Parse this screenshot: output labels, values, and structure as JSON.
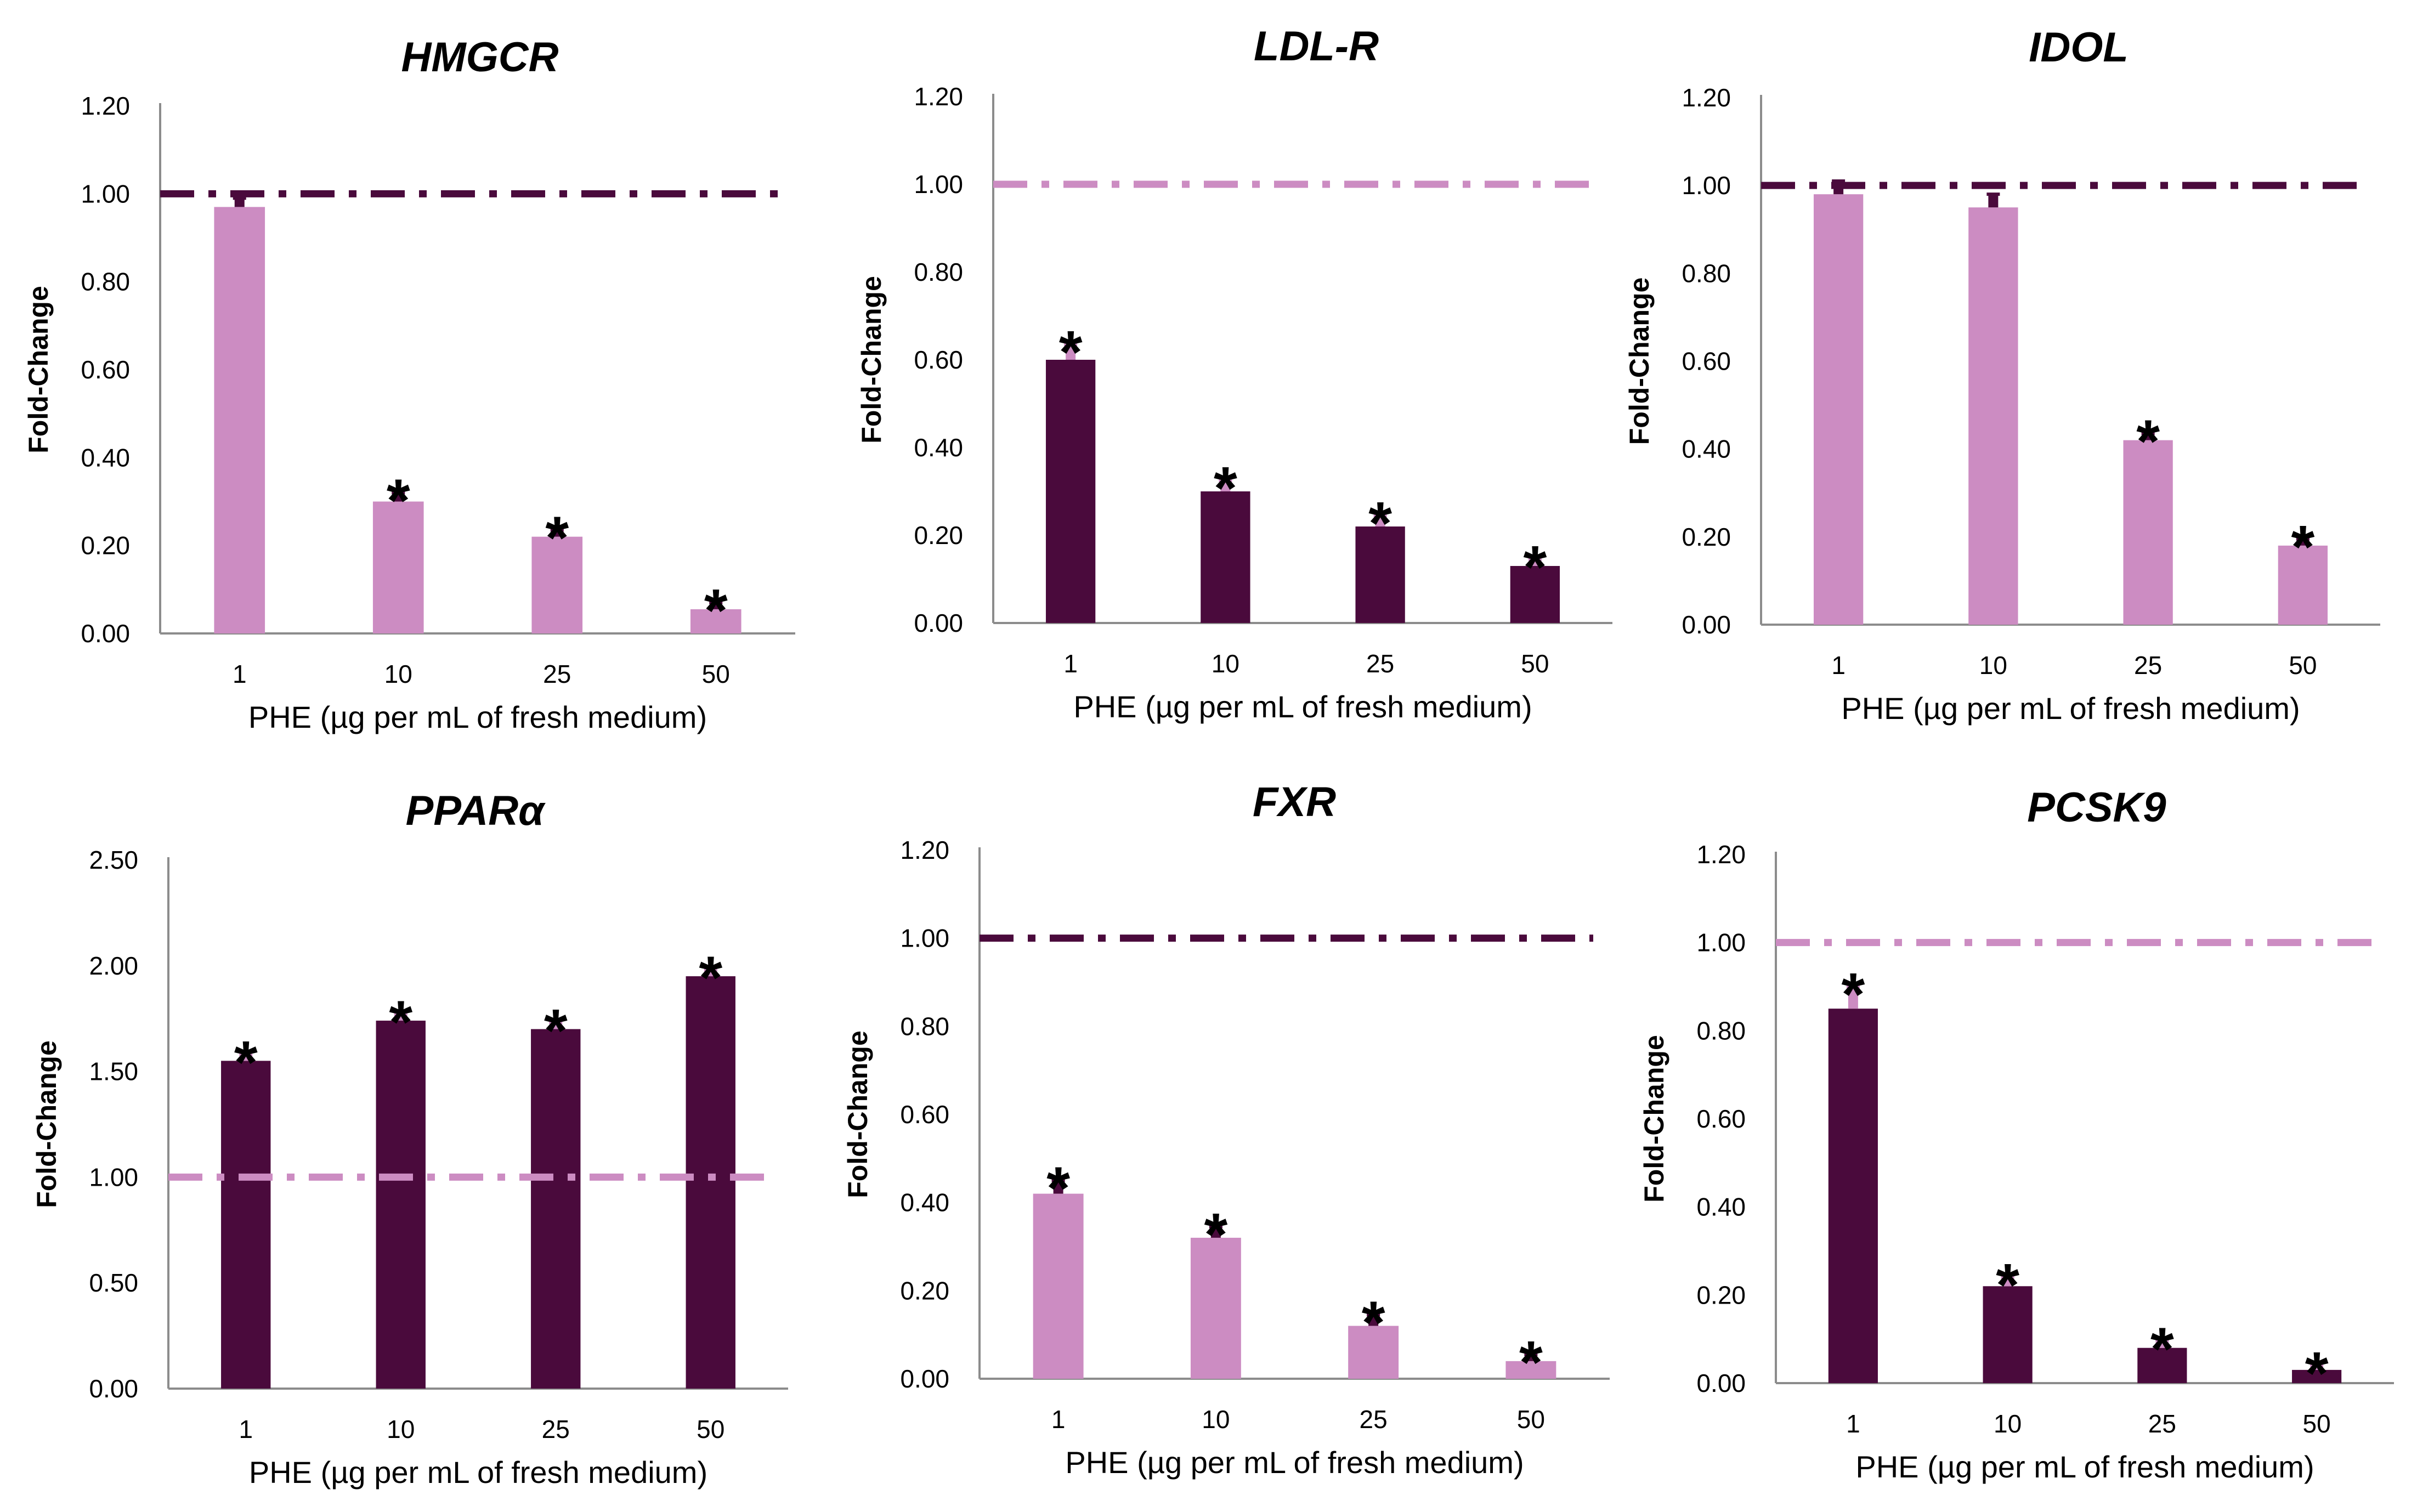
{
  "colors": {
    "dark": "#4a0a3c",
    "light": "#cc8cc2"
  },
  "chart_data": [
    {
      "type": "bar",
      "title": "HMGCR",
      "xlabel": "PHE (µg per mL of fresh medium)",
      "ylabel": "Fold-Change",
      "categories": [
        "1",
        "10",
        "25",
        "50"
      ],
      "values": [
        0.97,
        0.3,
        0.22,
        0.055
      ],
      "errors": [
        0.02,
        0.02,
        0.015,
        0.015
      ],
      "significant": [
        false,
        true,
        true,
        true
      ],
      "ylim": [
        0,
        1.2
      ],
      "yticks": [
        "0.00",
        "0.20",
        "0.40",
        "0.60",
        "0.80",
        "1.00",
        "1.20"
      ],
      "bar_color": "light",
      "reference_line": 1.0,
      "reference_color": "dark"
    },
    {
      "type": "bar",
      "title": "LDL-R",
      "xlabel": "PHE (µg per mL of fresh medium)",
      "ylabel": "Fold-Change",
      "categories": [
        "1",
        "10",
        "25",
        "50"
      ],
      "values": [
        0.6,
        0.3,
        0.22,
        0.13
      ],
      "errors": [
        0.035,
        0.025,
        0.025,
        0.015
      ],
      "significant": [
        true,
        true,
        true,
        true
      ],
      "ylim": [
        0,
        1.2
      ],
      "yticks": [
        "0.00",
        "0.20",
        "0.40",
        "0.60",
        "0.80",
        "1.00",
        "1.20"
      ],
      "bar_color": "dark",
      "reference_line": 1.0,
      "reference_color": "light"
    },
    {
      "type": "bar",
      "title": "IDOL",
      "xlabel": "PHE (µg per mL of fresh medium)",
      "ylabel": "Fold-Change",
      "categories": [
        "1",
        "10",
        "25",
        "50"
      ],
      "values": [
        0.98,
        0.95,
        0.42,
        0.18
      ],
      "errors": [
        0.03,
        0.03,
        0.015,
        0.015
      ],
      "significant": [
        false,
        false,
        true,
        true
      ],
      "ylim": [
        0,
        1.2
      ],
      "yticks": [
        "0.00",
        "0.20",
        "0.40",
        "0.60",
        "0.80",
        "1.00",
        "1.20"
      ],
      "bar_color": "light",
      "reference_line": 1.0,
      "reference_color": "dark"
    },
    {
      "type": "bar",
      "title": "PPARα",
      "xlabel": "PHE (µg per mL of fresh medium)",
      "ylabel": "Fold-Change",
      "categories": [
        "1",
        "10",
        "25",
        "50"
      ],
      "values": [
        1.55,
        1.74,
        1.7,
        1.95
      ],
      "errors": [
        0.03,
        0.03,
        0.03,
        0.03
      ],
      "significant": [
        true,
        true,
        true,
        true
      ],
      "ylim": [
        0,
        2.5
      ],
      "yticks": [
        "0.00",
        "0.50",
        "1.00",
        "1.50",
        "2.00",
        "2.50"
      ],
      "bar_color": "dark",
      "reference_line": 1.0,
      "reference_color": "light"
    },
    {
      "type": "bar",
      "title": "FXR",
      "xlabel": "PHE (µg per mL of fresh medium)",
      "ylabel": "Fold-Change",
      "categories": [
        "1",
        "10",
        "25",
        "50"
      ],
      "values": [
        0.42,
        0.32,
        0.12,
        0.04
      ],
      "errors": [
        0.03,
        0.025,
        0.025,
        0.015
      ],
      "significant": [
        true,
        true,
        true,
        true
      ],
      "ylim": [
        0,
        1.2
      ],
      "yticks": [
        "0.00",
        "0.20",
        "0.40",
        "0.60",
        "0.80",
        "1.00",
        "1.20"
      ],
      "bar_color": "light",
      "reference_line": 1.0,
      "reference_color": "dark"
    },
    {
      "type": "bar",
      "title": "PCSK9",
      "xlabel": "PHE (µg per mL of fresh medium)",
      "ylabel": "Fold-Change",
      "categories": [
        "1",
        "10",
        "25",
        "50"
      ],
      "values": [
        0.85,
        0.22,
        0.08,
        0.03
      ],
      "errors": [
        0.05,
        0.02,
        0.015,
        0.01
      ],
      "significant": [
        true,
        true,
        true,
        true
      ],
      "ylim": [
        0,
        1.2
      ],
      "yticks": [
        "0.00",
        "0.20",
        "0.40",
        "0.60",
        "0.80",
        "1.00",
        "1.20"
      ],
      "bar_color": "dark",
      "reference_line": 1.0,
      "reference_color": "light"
    }
  ]
}
